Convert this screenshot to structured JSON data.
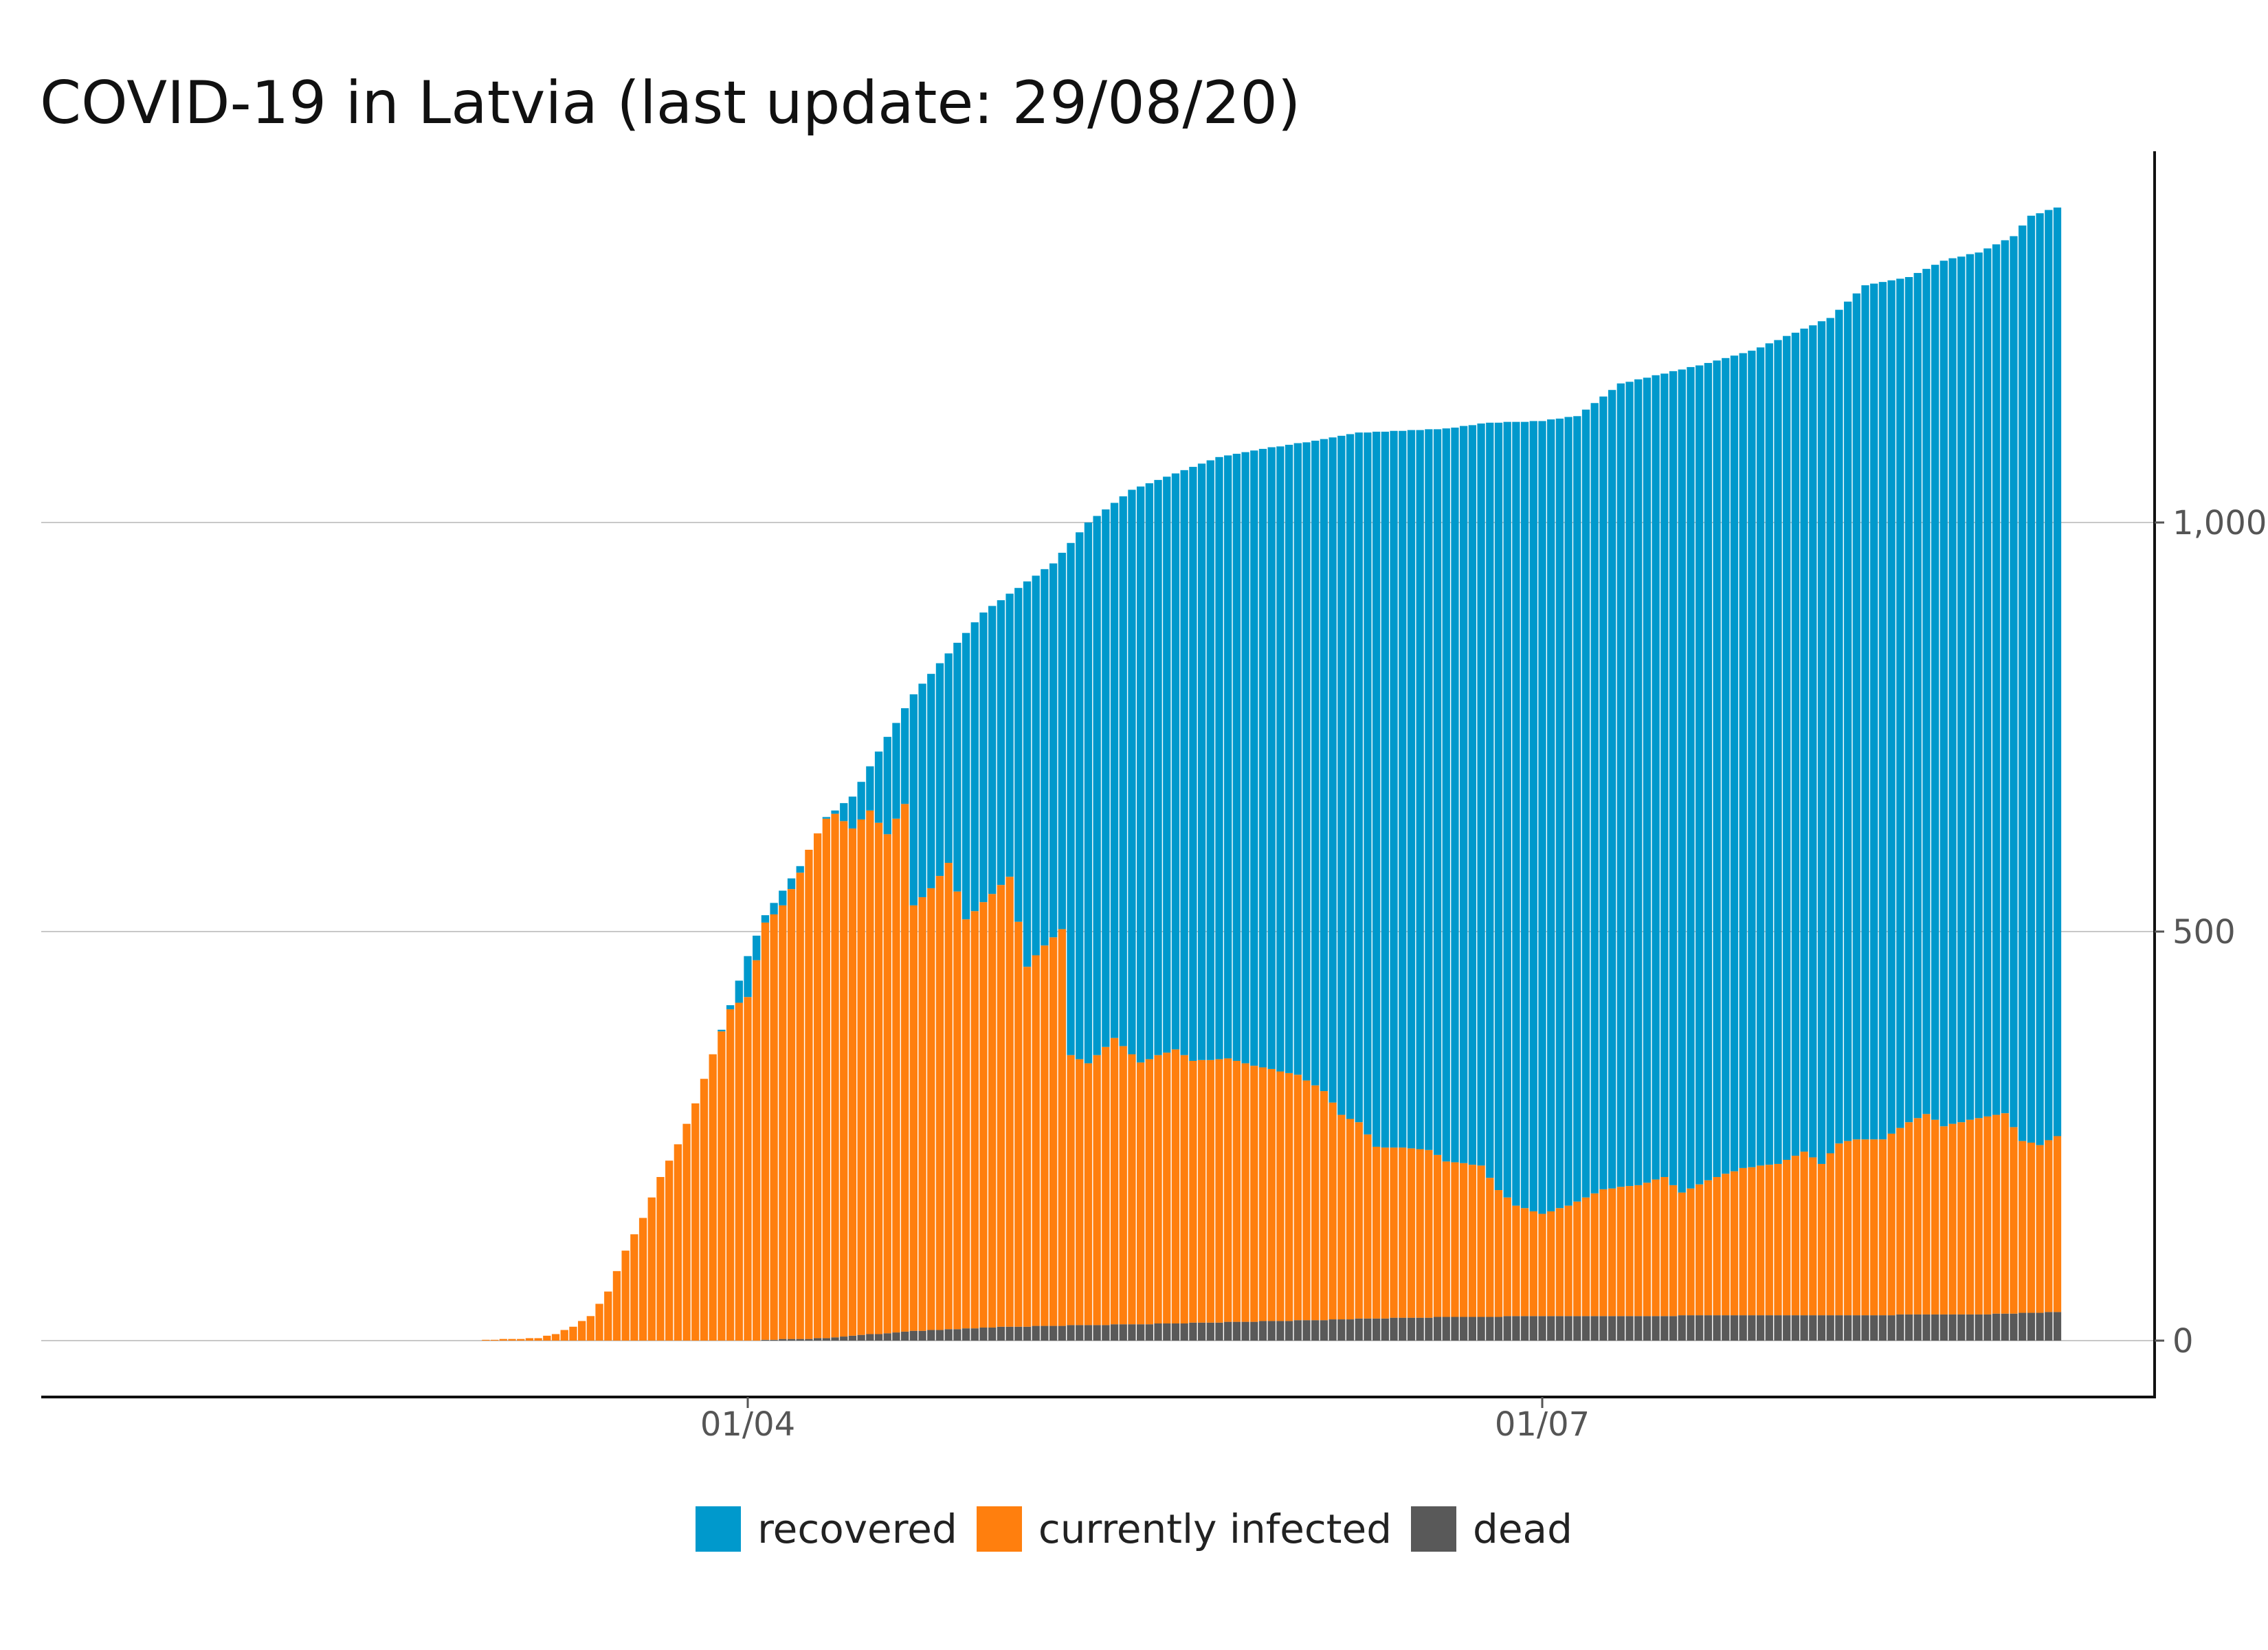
{
  "chart_data": {
    "type": "bar",
    "stacked": true,
    "title": "COVID-19 in Latvia (last update: 29/08/20)",
    "xlabel": "",
    "ylabel": "",
    "x_start_date": "2020-01-29",
    "x_end_date": "2020-08-29",
    "x_ticks": [
      {
        "date": "2020-04-01",
        "label": "01/04"
      },
      {
        "date": "2020-07-01",
        "label": "01/07"
      }
    ],
    "y_ticks": [
      {
        "value": 0,
        "label": "0"
      },
      {
        "value": 500,
        "label": "500"
      },
      {
        "value": 1000,
        "label": "1,000"
      }
    ],
    "ylim": [
      -70,
      1450
    ],
    "y_axis_position": "right",
    "grid": "horizontal",
    "legend_position": "bottom",
    "colors": {
      "recovered": "#0099cc",
      "currently_infected": "#ff7f0e",
      "dead": "#595959"
    },
    "series_order": [
      "dead",
      "currently infected",
      "recovered"
    ],
    "total_anchors": [
      [
        "2020-01-29",
        0
      ],
      [
        "2020-03-01",
        0
      ],
      [
        "2020-03-02",
        1
      ],
      [
        "2020-03-05",
        2
      ],
      [
        "2020-03-08",
        3
      ],
      [
        "2020-03-10",
        8
      ],
      [
        "2020-03-12",
        17
      ],
      [
        "2020-03-14",
        30
      ],
      [
        "2020-03-16",
        60
      ],
      [
        "2020-03-18",
        110
      ],
      [
        "2020-03-20",
        150
      ],
      [
        "2020-03-22",
        200
      ],
      [
        "2020-03-24",
        240
      ],
      [
        "2020-03-26",
        290
      ],
      [
        "2020-03-28",
        350
      ],
      [
        "2020-03-30",
        410
      ],
      [
        "2020-04-01",
        470
      ],
      [
        "2020-04-03",
        520
      ],
      [
        "2020-04-05",
        550
      ],
      [
        "2020-04-07",
        580
      ],
      [
        "2020-04-10",
        640
      ],
      [
        "2020-04-13",
        665
      ],
      [
        "2020-04-16",
        720
      ],
      [
        "2020-04-20",
        790
      ],
      [
        "2020-04-24",
        840
      ],
      [
        "2020-04-28",
        890
      ],
      [
        "2020-05-02",
        920
      ],
      [
        "2020-05-06",
        950
      ],
      [
        "2020-05-10",
        1000
      ],
      [
        "2020-05-15",
        1040
      ],
      [
        "2020-05-20",
        1060
      ],
      [
        "2020-05-25",
        1080
      ],
      [
        "2020-05-30",
        1090
      ],
      [
        "2020-06-05",
        1100
      ],
      [
        "2020-06-10",
        1110
      ],
      [
        "2020-06-15",
        1112
      ],
      [
        "2020-06-20",
        1115
      ],
      [
        "2020-06-25",
        1122
      ],
      [
        "2020-07-01",
        1124
      ],
      [
        "2020-07-05",
        1130
      ],
      [
        "2020-07-10",
        1170
      ],
      [
        "2020-07-15",
        1182
      ],
      [
        "2020-07-20",
        1195
      ],
      [
        "2020-07-25",
        1210
      ],
      [
        "2020-07-30",
        1232
      ],
      [
        "2020-08-03",
        1250
      ],
      [
        "2020-08-07",
        1290
      ],
      [
        "2020-08-12",
        1300
      ],
      [
        "2020-08-16",
        1320
      ],
      [
        "2020-08-20",
        1330
      ],
      [
        "2020-08-24",
        1350
      ],
      [
        "2020-08-26",
        1375
      ],
      [
        "2020-08-29",
        1385
      ]
    ],
    "currently_infected_anchors": [
      [
        "2020-01-29",
        0
      ],
      [
        "2020-03-01",
        0
      ],
      [
        "2020-03-02",
        1
      ],
      [
        "2020-03-05",
        2
      ],
      [
        "2020-03-08",
        3
      ],
      [
        "2020-03-10",
        8
      ],
      [
        "2020-03-12",
        17
      ],
      [
        "2020-03-14",
        30
      ],
      [
        "2020-03-16",
        60
      ],
      [
        "2020-03-18",
        110
      ],
      [
        "2020-03-20",
        150
      ],
      [
        "2020-03-22",
        200
      ],
      [
        "2020-03-24",
        240
      ],
      [
        "2020-03-26",
        290
      ],
      [
        "2020-03-28",
        350
      ],
      [
        "2020-03-30",
        405
      ],
      [
        "2020-04-01",
        420
      ],
      [
        "2020-04-03",
        510
      ],
      [
        "2020-04-05",
        530
      ],
      [
        "2020-04-07",
        570
      ],
      [
        "2020-04-09",
        630
      ],
      [
        "2020-04-11",
        640
      ],
      [
        "2020-04-13",
        620
      ],
      [
        "2020-04-15",
        640
      ],
      [
        "2020-04-17",
        610
      ],
      [
        "2020-04-19",
        645
      ],
      [
        "2020-04-20",
        520
      ],
      [
        "2020-04-22",
        540
      ],
      [
        "2020-04-24",
        570
      ],
      [
        "2020-04-26",
        500
      ],
      [
        "2020-04-28",
        520
      ],
      [
        "2020-05-01",
        550
      ],
      [
        "2020-05-03",
        440
      ],
      [
        "2020-05-05",
        465
      ],
      [
        "2020-05-07",
        485
      ],
      [
        "2020-05-08",
        330
      ],
      [
        "2020-05-10",
        320
      ],
      [
        "2020-05-13",
        350
      ],
      [
        "2020-05-16",
        320
      ],
      [
        "2020-05-20",
        335
      ],
      [
        "2020-05-22",
        320
      ],
      [
        "2020-05-26",
        322
      ],
      [
        "2020-05-30",
        310
      ],
      [
        "2020-06-03",
        300
      ],
      [
        "2020-06-06",
        280
      ],
      [
        "2020-06-08",
        250
      ],
      [
        "2020-06-10",
        240
      ],
      [
        "2020-06-12",
        210
      ],
      [
        "2020-06-18",
        205
      ],
      [
        "2020-06-20",
        190
      ],
      [
        "2020-06-24",
        185
      ],
      [
        "2020-06-26",
        155
      ],
      [
        "2020-06-28",
        135
      ],
      [
        "2020-07-01",
        125
      ],
      [
        "2020-07-04",
        135
      ],
      [
        "2020-07-08",
        155
      ],
      [
        "2020-07-12",
        160
      ],
      [
        "2020-07-15",
        170
      ],
      [
        "2020-07-17",
        150
      ],
      [
        "2020-07-20",
        165
      ],
      [
        "2020-07-24",
        180
      ],
      [
        "2020-07-28",
        185
      ],
      [
        "2020-07-31",
        200
      ],
      [
        "2020-08-02",
        185
      ],
      [
        "2020-08-04",
        210
      ],
      [
        "2020-08-06",
        215
      ],
      [
        "2020-08-09",
        215
      ],
      [
        "2020-08-12",
        235
      ],
      [
        "2020-08-14",
        245
      ],
      [
        "2020-08-16",
        230
      ],
      [
        "2020-08-20",
        240
      ],
      [
        "2020-08-23",
        245
      ],
      [
        "2020-08-25",
        210
      ],
      [
        "2020-08-27",
        205
      ],
      [
        "2020-08-29",
        215
      ]
    ],
    "dead_anchors": [
      [
        "2020-01-29",
        0
      ],
      [
        "2020-04-02",
        0
      ],
      [
        "2020-04-03",
        1
      ],
      [
        "2020-04-10",
        3
      ],
      [
        "2020-04-20",
        12
      ],
      [
        "2020-05-01",
        17
      ],
      [
        "2020-05-15",
        20
      ],
      [
        "2020-06-01",
        24
      ],
      [
        "2020-06-15",
        28
      ],
      [
        "2020-07-01",
        30
      ],
      [
        "2020-08-01",
        31
      ],
      [
        "2020-08-20",
        32
      ],
      [
        "2020-08-29",
        35
      ]
    ],
    "series": [
      {
        "name": "recovered",
        "color": "#0099cc"
      },
      {
        "name": "currently infected",
        "color": "#ff7f0e"
      },
      {
        "name": "dead",
        "color": "#595959"
      }
    ]
  },
  "legend": {
    "items": [
      {
        "label": "recovered",
        "color": "#0099cc",
        "icon": "square-swatch"
      },
      {
        "label": "currently infected",
        "color": "#ff7f0e",
        "icon": "square-swatch"
      },
      {
        "label": "dead",
        "color": "#595959",
        "icon": "square-swatch"
      }
    ]
  }
}
